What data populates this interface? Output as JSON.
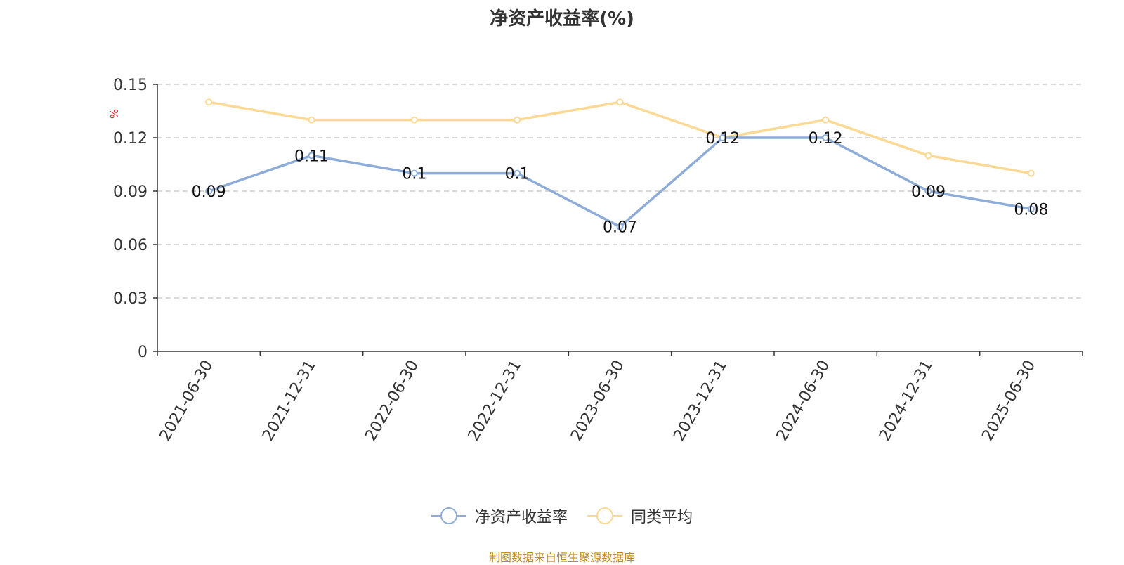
{
  "chart_data": {
    "type": "line",
    "title": "净资产收益率(%)",
    "ylabel": "%",
    "categories": [
      "2021-06-30",
      "2021-12-31",
      "2022-06-30",
      "2022-12-31",
      "2023-06-30",
      "2023-12-31",
      "2024-06-30",
      "2024-12-31",
      "2025-06-30"
    ],
    "series": [
      {
        "name": "净资产收益率",
        "color": "#8eacd8",
        "values": [
          0.09,
          0.11,
          0.1,
          0.1,
          0.07,
          0.12,
          0.12,
          0.09,
          0.08
        ],
        "data_labels": [
          "0.09",
          "0.11",
          "0.1",
          "0.1",
          "0.07",
          "0.12",
          "0.12",
          "0.09",
          "0.08"
        ]
      },
      {
        "name": "同类平均",
        "color": "#fbd995",
        "values": [
          0.14,
          0.13,
          0.13,
          0.13,
          0.14,
          0.12,
          0.13,
          0.11,
          0.1
        ]
      }
    ],
    "ylim": [
      0,
      0.15
    ],
    "yticks": [
      "0",
      "0.03",
      "0.06",
      "0.09",
      "0.12",
      "0.15"
    ],
    "grid": true,
    "legend_position": "bottom-center"
  },
  "source_note": "制图数据来自恒生聚源数据库"
}
